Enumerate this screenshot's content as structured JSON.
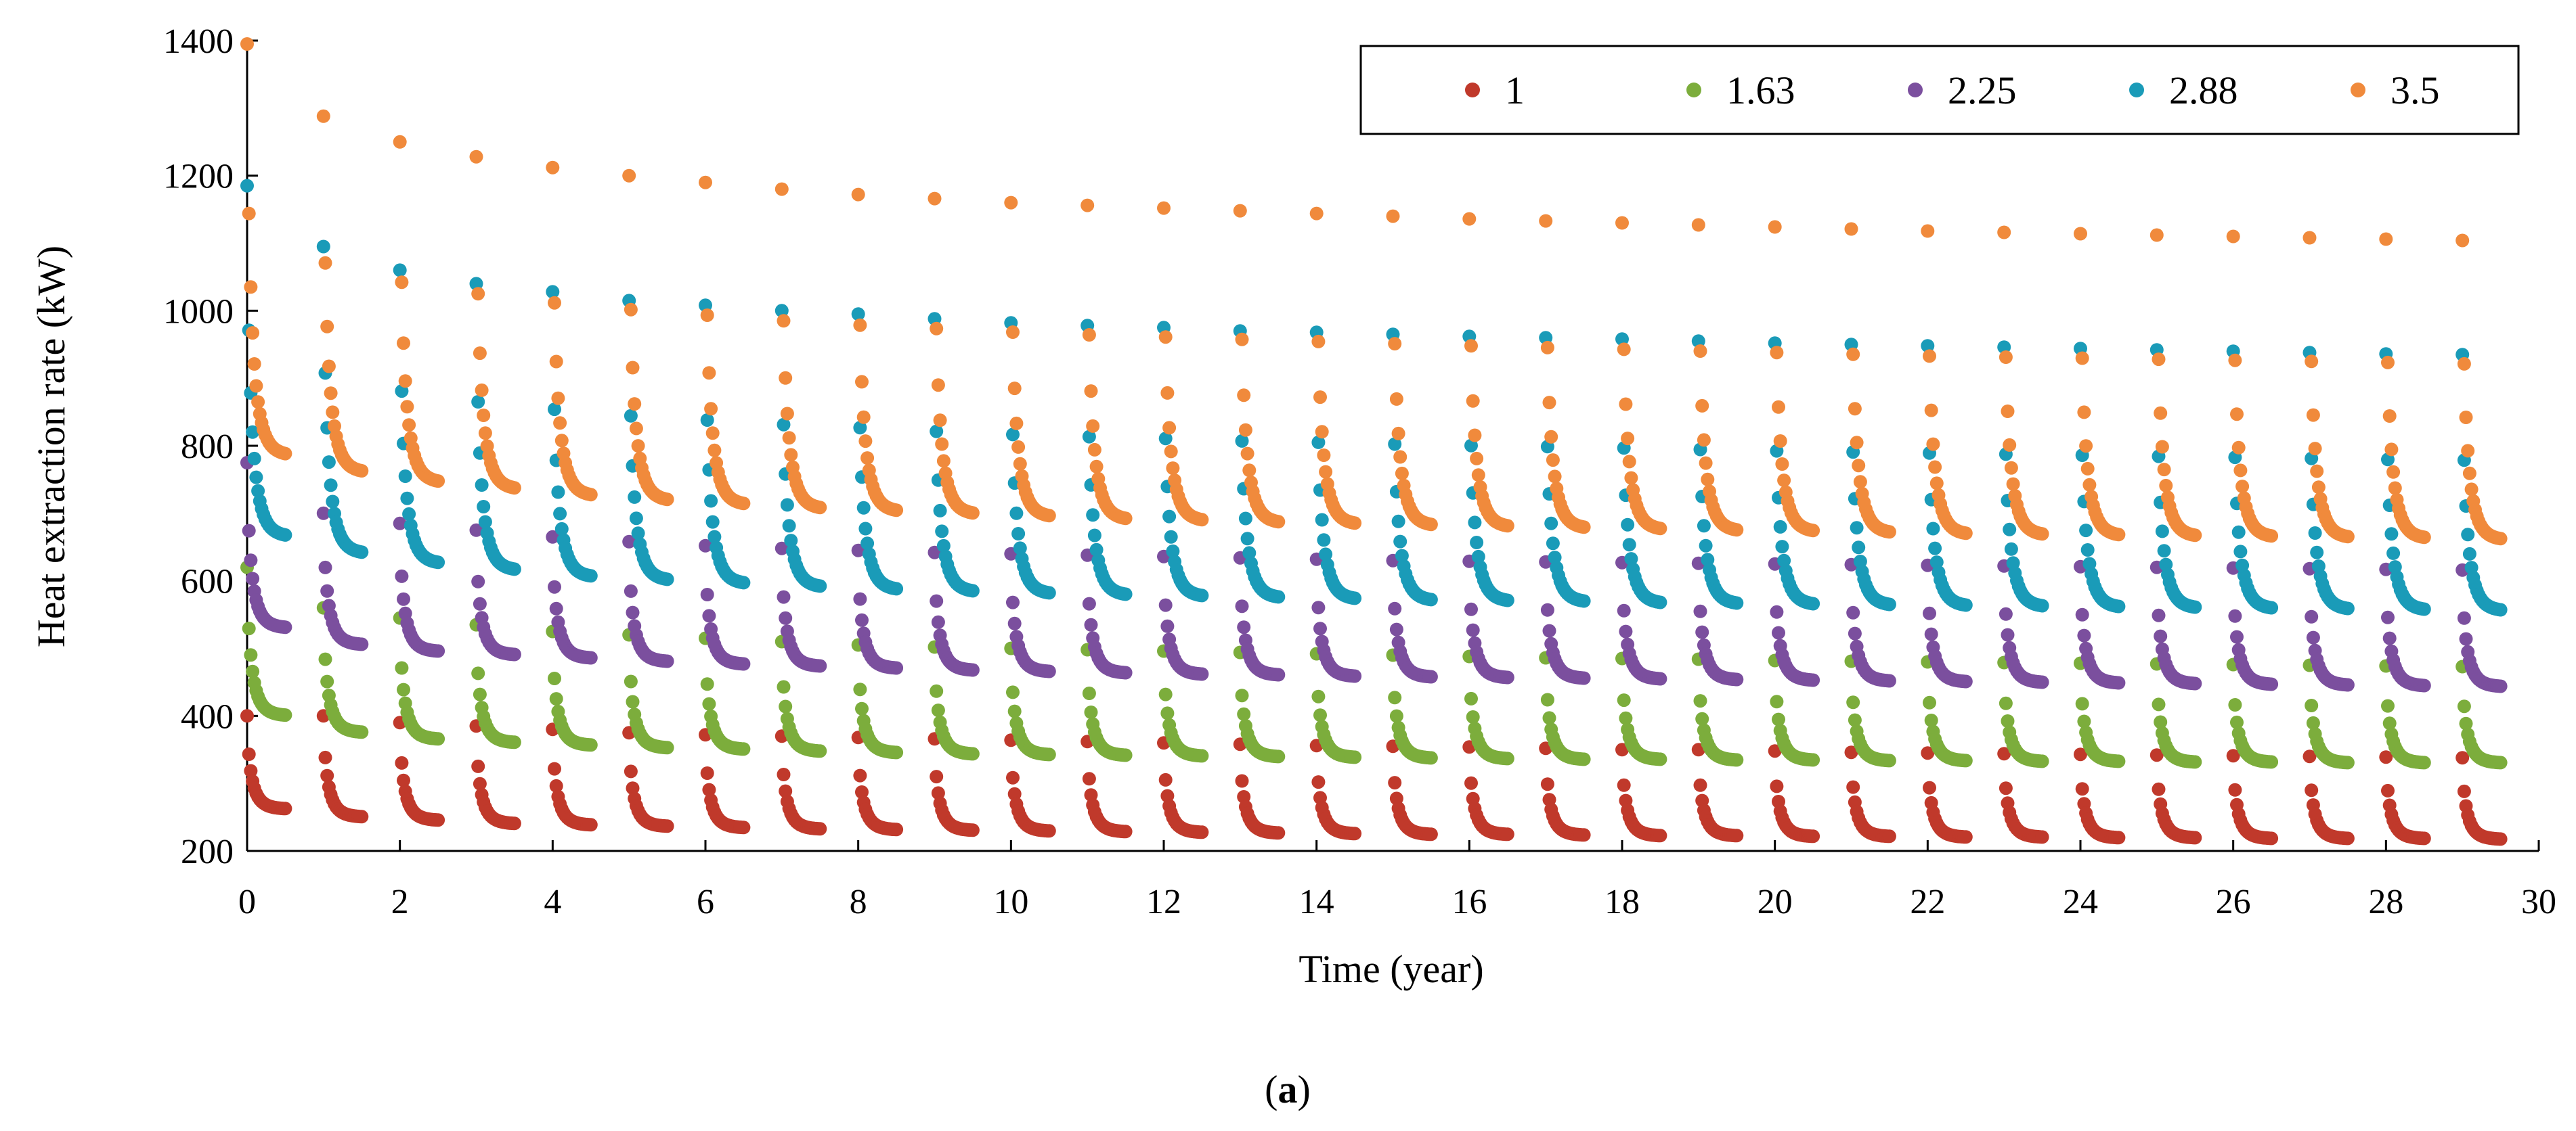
{
  "chart_data": {
    "type": "scatter",
    "title": "",
    "xlabel": "Time (year)",
    "ylabel": "Heat extraction rate (kW)",
    "xlim": [
      0,
      30
    ],
    "ylim": [
      200,
      1400
    ],
    "xticks": [
      0,
      2,
      4,
      6,
      8,
      10,
      12,
      14,
      16,
      18,
      20,
      22,
      24,
      26,
      28,
      30
    ],
    "yticks": [
      200,
      400,
      600,
      800,
      1000,
      1200,
      1400
    ],
    "grid": false,
    "legend_position": "top-right",
    "cycle_period_years": 1,
    "cycle_duration_years": 0.5,
    "points_per_cycle": 22,
    "series": [
      {
        "name": "1",
        "color": "#c0392b",
        "peak_values": [
          400,
          400,
          390,
          385,
          380,
          375,
          372,
          370,
          368,
          366,
          364,
          362,
          360,
          358,
          356,
          355,
          354,
          352,
          350,
          350,
          348,
          346,
          345,
          344,
          343,
          342,
          341,
          340,
          339,
          338
        ],
        "end_values": [
          262,
          250,
          245,
          240,
          238,
          236,
          234,
          232,
          231,
          230,
          229,
          228,
          227,
          226,
          225,
          224,
          224,
          223,
          222,
          222,
          221,
          221,
          220,
          220,
          219,
          219,
          218,
          218,
          218,
          217
        ]
      },
      {
        "name": "1.63",
        "color": "#7cad3c",
        "peak_values": [
          620,
          560,
          545,
          535,
          525,
          520,
          515,
          510,
          505,
          502,
          500,
          498,
          496,
          494,
          492,
          490,
          488,
          486,
          485,
          484,
          482,
          481,
          480,
          479,
          478,
          477,
          476,
          475,
          474,
          473
        ],
        "end_values": [
          400,
          375,
          365,
          360,
          356,
          352,
          350,
          347,
          345,
          343,
          342,
          341,
          340,
          339,
          338,
          337,
          336,
          335,
          335,
          334,
          334,
          333,
          333,
          332,
          332,
          331,
          331,
          330,
          330,
          330
        ]
      },
      {
        "name": "2.25",
        "color": "#7b4f9e",
        "peak_values": [
          775,
          700,
          685,
          675,
          665,
          658,
          652,
          648,
          645,
          642,
          640,
          638,
          636,
          634,
          632,
          630,
          629,
          628,
          627,
          626,
          625,
          624,
          623,
          622,
          621,
          620,
          619,
          618,
          617,
          616
        ],
        "end_values": [
          530,
          505,
          495,
          490,
          485,
          480,
          476,
          473,
          470,
          467,
          465,
          463,
          461,
          460,
          458,
          457,
          456,
          455,
          454,
          453,
          452,
          451,
          450,
          449,
          448,
          447,
          446,
          445,
          444,
          443
        ]
      },
      {
        "name": "2.88",
        "color": "#1a9bb8",
        "peak_values": [
          1185,
          1095,
          1060,
          1040,
          1028,
          1015,
          1008,
          1000,
          995,
          988,
          982,
          978,
          975,
          970,
          968,
          965,
          962,
          960,
          958,
          955,
          952,
          950,
          948,
          946,
          944,
          942,
          940,
          938,
          936,
          935
        ],
        "end_values": [
          665,
          640,
          625,
          615,
          605,
          600,
          595,
          590,
          586,
          583,
          580,
          578,
          576,
          574,
          572,
          570,
          569,
          568,
          566,
          565,
          564,
          563,
          562,
          561,
          560,
          559,
          558,
          557,
          556,
          555
        ]
      },
      {
        "name": "3.5",
        "color": "#f08a3c",
        "peak_values": [
          1395,
          1288,
          1250,
          1228,
          1212,
          1200,
          1190,
          1180,
          1172,
          1166,
          1160,
          1156,
          1152,
          1148,
          1144,
          1140,
          1136,
          1133,
          1130,
          1127,
          1124,
          1121,
          1118,
          1116,
          1114,
          1112,
          1110,
          1108,
          1106,
          1104
        ],
        "end_values": [
          785,
          760,
          745,
          735,
          725,
          718,
          712,
          706,
          702,
          698,
          694,
          690,
          688,
          685,
          683,
          681,
          679,
          677,
          675,
          673,
          672,
          670,
          668,
          667,
          666,
          665,
          664,
          663,
          662,
          660
        ]
      }
    ]
  },
  "caption": {
    "open": "(",
    "label": "a",
    "close": ")"
  }
}
